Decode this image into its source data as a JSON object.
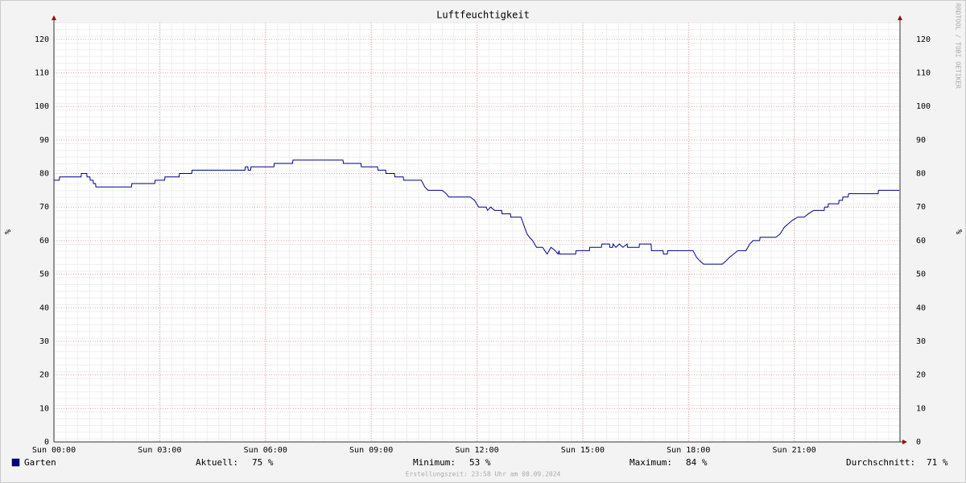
{
  "chart_data": {
    "type": "line",
    "title": "Luftfeuchtigkeit",
    "y_label": "%",
    "watermark": "RRDTOOL / TOBI OETIKER",
    "footer": "Erstellungszeit: 23:58 Uhr am 08.09.2024",
    "xlim": [
      0,
      24
    ],
    "xticks": [
      {
        "value": 0,
        "label": "Sun 00:00"
      },
      {
        "value": 3,
        "label": "Sun 03:00"
      },
      {
        "value": 6,
        "label": "Sun 06:00"
      },
      {
        "value": 9,
        "label": "Sun 09:00"
      },
      {
        "value": 12,
        "label": "Sun 12:00"
      },
      {
        "value": 15,
        "label": "Sun 15:00"
      },
      {
        "value": 18,
        "label": "Sun 18:00"
      },
      {
        "value": 21,
        "label": "Sun 21:00"
      }
    ],
    "ylim": [
      0,
      125
    ],
    "yticks": [
      0,
      10,
      20,
      30,
      40,
      50,
      60,
      70,
      80,
      90,
      100,
      110,
      120
    ],
    "grid": true,
    "x": [
      0,
      0.15,
      0.16,
      0.77,
      0.78,
      0.93,
      0.94,
      1.02,
      1.03,
      1.11,
      1.12,
      1.18,
      1.19,
      2.2,
      2.21,
      2.86,
      2.87,
      3.14,
      3.15,
      3.55,
      3.56,
      3.91,
      3.92,
      5.42,
      5.43,
      5.5,
      5.51,
      5.58,
      5.59,
      6.24,
      6.25,
      6.77,
      6.78,
      8.2,
      8.21,
      8.71,
      8.72,
      9.18,
      9.19,
      9.41,
      9.42,
      9.66,
      9.67,
      9.91,
      9.92,
      10.42,
      10.52,
      10.61,
      11.01,
      11.13,
      11.2,
      11.81,
      11.93,
      12.05,
      12.26,
      12.3,
      12.39,
      12.5,
      12.7,
      12.71,
      12.95,
      12.96,
      13.25,
      13.35,
      13.42,
      13.49,
      13.58,
      13.69,
      13.86,
      13.99,
      14.1,
      14.22,
      14.3,
      14.33,
      14.34,
      14.8,
      14.81,
      15.19,
      15.2,
      15.53,
      15.54,
      15.76,
      15.77,
      15.85,
      15.86,
      15.94,
      16.04,
      16.14,
      16.26,
      16.27,
      16.6,
      16.61,
      16.94,
      16.95,
      17.28,
      17.29,
      17.4,
      17.41,
      18.13,
      18.23,
      18.32,
      18.43,
      18.96,
      19.07,
      19.16,
      19.28,
      19.4,
      19.63,
      19.74,
      19.83,
      20.02,
      20.03,
      20.48,
      20.6,
      20.72,
      20.83,
      20.94,
      21.1,
      21.28,
      21.4,
      21.55,
      21.85,
      21.86,
      21.96,
      21.97,
      22.26,
      22.27,
      22.37,
      22.38,
      22.53,
      22.54,
      23.38,
      23.39,
      23.98
    ],
    "series": [
      {
        "name": "Garten",
        "color": "#000088",
        "values": [
          78,
          78,
          79,
          79,
          80,
          80,
          79,
          79,
          78,
          78,
          77,
          77,
          76,
          76,
          77,
          77,
          78,
          78,
          79,
          79,
          80,
          80,
          81,
          81,
          82,
          82,
          81,
          81,
          82,
          82,
          83,
          83,
          84,
          84,
          83,
          83,
          82,
          82,
          81,
          81,
          80,
          80,
          79,
          79,
          78,
          78,
          76,
          75,
          75,
          74,
          73,
          73,
          72,
          70,
          70,
          69,
          70,
          69,
          69,
          68,
          68,
          67,
          67,
          64,
          62,
          61,
          60,
          58,
          58,
          56,
          58,
          57,
          56,
          57,
          56,
          56,
          57,
          57,
          58,
          58,
          59,
          59,
          58,
          58,
          59,
          58,
          59,
          58,
          59,
          58,
          58,
          59,
          59,
          57,
          57,
          56,
          56,
          57,
          57,
          55,
          54,
          53,
          53,
          54,
          55,
          56,
          57,
          57,
          59,
          60,
          60,
          61,
          61,
          62,
          64,
          65,
          66,
          67,
          67,
          68,
          69,
          69,
          70,
          70,
          71,
          71,
          72,
          72,
          73,
          73,
          74,
          74,
          75,
          75
        ]
      }
    ],
    "stats": [
      {
        "label": "Aktuell:",
        "value": "75 %"
      },
      {
        "label": "Minimum:",
        "value": "53 %"
      },
      {
        "label": "Maximum:",
        "value": "84 %"
      },
      {
        "label": "Durchschnitt:",
        "value": "71 %"
      }
    ]
  }
}
